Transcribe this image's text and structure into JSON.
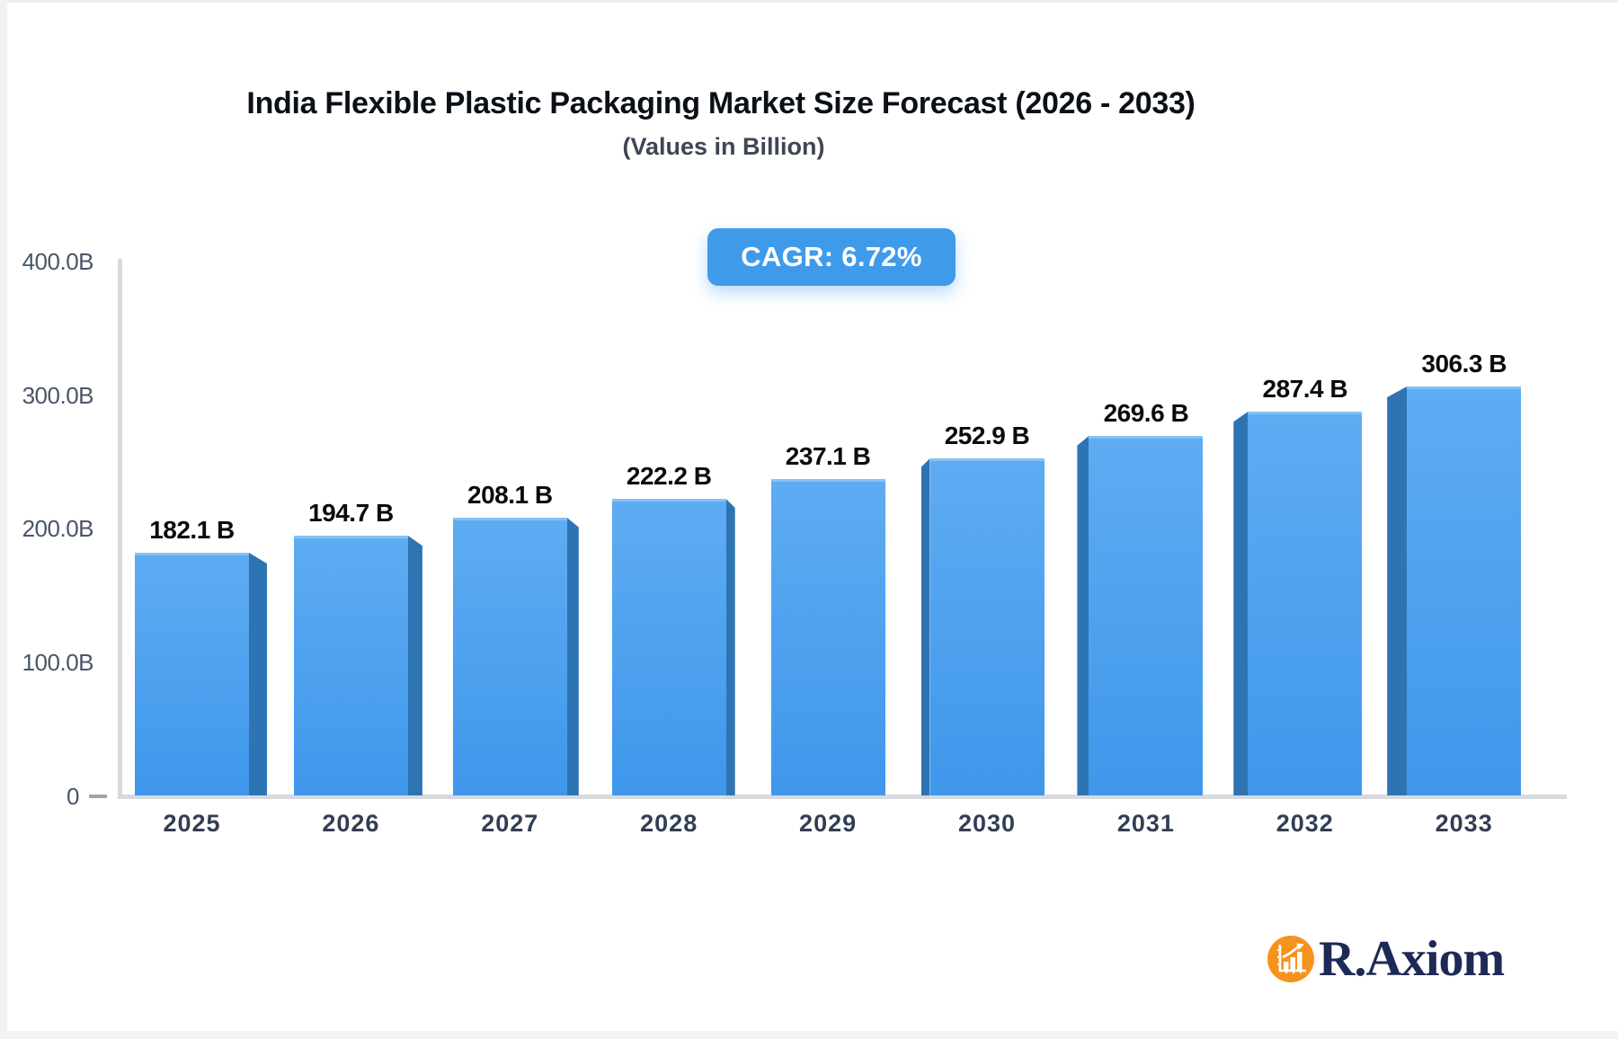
{
  "page": {
    "title": "India Flexible Plastic Packaging Market Size Forecast (2026 - 2033)",
    "subtitle": "(Values in Billion)",
    "cagr_badge": "CAGR: 6.72%"
  },
  "chart_data": {
    "type": "bar",
    "title": "India Flexible Plastic Packaging Market Size Forecast (2026 - 2033)",
    "subtitle": "(Values in Billion)",
    "unit": "Billion",
    "cagr_percent": 6.72,
    "categories": [
      "2025",
      "2026",
      "2027",
      "2028",
      "2029",
      "2030",
      "2031",
      "2032",
      "2033"
    ],
    "values": [
      182.1,
      194.7,
      208.1,
      222.2,
      237.1,
      252.9,
      269.6,
      287.4,
      306.3
    ],
    "value_labels": [
      "182.1 B",
      "194.7 B",
      "208.1 B",
      "222.2 B",
      "237.1 B",
      "252.9 B",
      "269.6 B",
      "287.4 B",
      "306.3 B"
    ],
    "y_ticks": [
      {
        "label": "400.0B",
        "value": 400
      },
      {
        "label": "300.0B",
        "value": 300
      },
      {
        "label": "200.0B",
        "value": 200
      },
      {
        "label": "100.0B",
        "value": 100
      },
      {
        "label": "0",
        "value": 0
      }
    ],
    "ylim": [
      0,
      400
    ],
    "grid": false,
    "legend": "none",
    "bar_style": "3d-extruded-central-perspective"
  },
  "colors": {
    "bar_face_top": "#5eacf2",
    "bar_face_bottom": "#3f97eb",
    "bar_side": "#2e74b3",
    "badge_bg": "#3f9bea",
    "badge_text": "#ffffff",
    "axis_line": "#d7dadf",
    "tick_label": "#4a5568",
    "category_label": "#333e54",
    "value_label": "#0b0b0c",
    "title": "#0b0f17",
    "subtitle": "#3e4654",
    "logo_orange": "#f6921e",
    "logo_navy": "#1e2a56"
  },
  "branding": {
    "logo_text": "R.Axiom"
  }
}
